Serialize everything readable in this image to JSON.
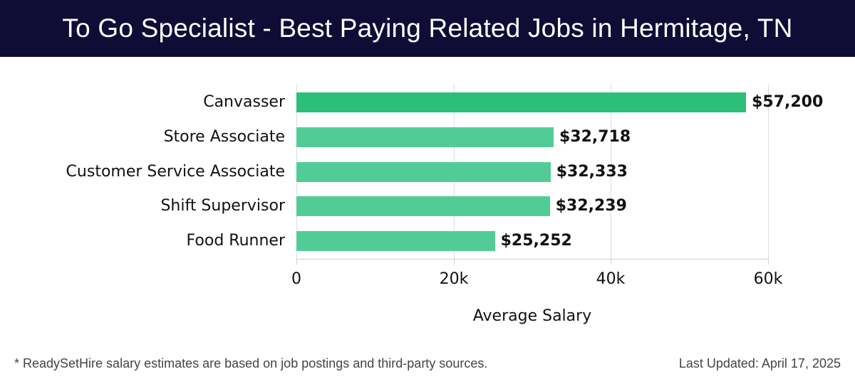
{
  "header": {
    "title": "To Go Specialist - Best Paying Related Jobs in Hermitage, TN"
  },
  "chart_data": {
    "type": "bar",
    "orientation": "horizontal",
    "title": "To Go Specialist - Best Paying Related Jobs in Hermitage, TN",
    "categories": [
      "Canvasser",
      "Store Associate",
      "Customer Service Associate",
      "Shift Supervisor",
      "Food Runner"
    ],
    "values": [
      57200,
      32718,
      32333,
      32239,
      25252
    ],
    "value_labels": [
      "$57,200",
      "$32,718",
      "$32,333",
      "$32,239",
      "$25,252"
    ],
    "xlabel": "Average Salary",
    "ylabel": "",
    "xlim": [
      0,
      60000
    ],
    "xticks": [
      0,
      20000,
      40000,
      60000
    ],
    "xtick_labels": [
      "0",
      "20k",
      "40k",
      "60k"
    ],
    "grid": true,
    "colors": {
      "highlight": "#2bbf78",
      "default": "#52cc96"
    }
  },
  "footer": {
    "note": "* ReadySetHire salary estimates are based on job postings and third-party sources.",
    "updated": "Last Updated: April 17, 2025"
  }
}
